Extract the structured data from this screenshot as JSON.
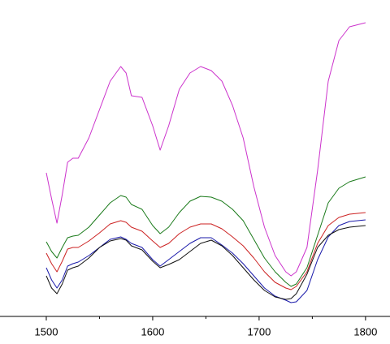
{
  "chart_data": {
    "type": "line",
    "x": [
      1500,
      1505,
      1510,
      1515,
      1520,
      1525,
      1530,
      1540,
      1550,
      1560,
      1570,
      1575,
      1580,
      1590,
      1600,
      1607,
      1615,
      1625,
      1635,
      1645,
      1655,
      1665,
      1675,
      1685,
      1695,
      1705,
      1715,
      1725,
      1730,
      1735,
      1745,
      1755,
      1765,
      1775,
      1785,
      1800
    ],
    "series": [
      {
        "color": "#cc33cc",
        "values": [
          177,
          145,
          115,
          150,
          190,
          195,
          195,
          220,
          255,
          290,
          308,
          300,
          272,
          270,
          235,
          205,
          235,
          280,
          300,
          308,
          303,
          290,
          260,
          220,
          160,
          110,
          75,
          55,
          50,
          55,
          85,
          180,
          290,
          340,
          357,
          362
        ]
      },
      {
        "color": "#1a7a1a",
        "values": [
          92,
          80,
          72,
          85,
          97,
          99,
          100,
          110,
          125,
          140,
          149,
          147,
          138,
          132,
          112,
          102,
          110,
          128,
          142,
          148,
          147,
          142,
          132,
          118,
          95,
          72,
          55,
          42,
          37,
          40,
          60,
          100,
          140,
          158,
          166,
          172
        ]
      },
      {
        "color": "#cc2222",
        "values": [
          78,
          65,
          55,
          68,
          83,
          85,
          85,
          93,
          103,
          114,
          118,
          116,
          110,
          105,
          93,
          85,
          90,
          102,
          110,
          114,
          114,
          108,
          98,
          87,
          72,
          55,
          42,
          35,
          33,
          37,
          55,
          90,
          112,
          122,
          126,
          128
        ]
      },
      {
        "color": "#1a1aaa",
        "values": [
          60,
          45,
          35,
          45,
          62,
          65,
          67,
          75,
          85,
          95,
          98,
          95,
          90,
          85,
          70,
          62,
          70,
          80,
          90,
          97,
          97,
          88,
          78,
          65,
          50,
          35,
          25,
          20,
          17,
          18,
          32,
          70,
          98,
          112,
          117,
          119
        ]
      },
      {
        "color": "#111111",
        "values": [
          50,
          35,
          28,
          40,
          57,
          60,
          62,
          72,
          85,
          93,
          96,
          94,
          87,
          82,
          68,
          60,
          64,
          70,
          80,
          90,
          94,
          87,
          75,
          60,
          45,
          32,
          24,
          21,
          22,
          28,
          52,
          85,
          100,
          107,
          110,
          112
        ]
      }
    ],
    "xlim": [
      1456.5,
      1823
    ],
    "ylim": [
      0,
      390
    ],
    "xticks": [
      1500,
      1600,
      1700,
      1800
    ],
    "minor_xticks": [
      1550,
      1650,
      1750
    ]
  }
}
